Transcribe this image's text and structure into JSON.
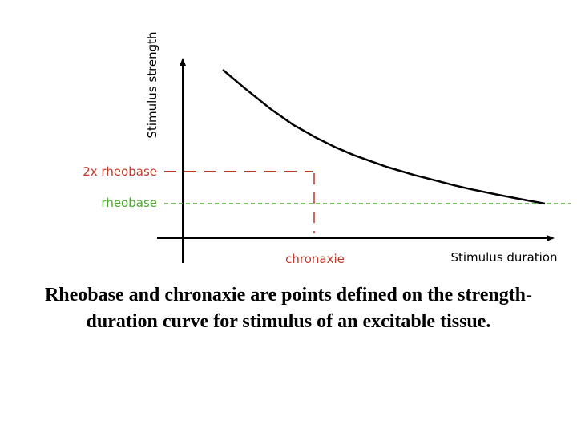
{
  "chart_data": {
    "type": "line",
    "title": "",
    "xlabel": "Stimulus duration",
    "ylabel": "Stimulus strength",
    "xticks": [],
    "yticks": [],
    "grid": false,
    "series": [
      {
        "color": "#000000",
        "x": [
          1.0,
          1.2,
          1.5,
          1.8,
          2.2,
          2.6,
          3.0,
          3.5,
          4.0,
          5.0,
          6.0,
          7.0,
          8.0,
          10.0,
          12.0,
          15.0
        ],
        "y": [
          3.2,
          2.9,
          2.55,
          2.3,
          2.08,
          1.92,
          1.8,
          1.69,
          1.6,
          1.47,
          1.38,
          1.3,
          1.24,
          1.15,
          1.08,
          1.0
        ]
      }
    ],
    "annotations": [
      {
        "label": "2x rheobase",
        "y": 2.0,
        "color": "#c0392b",
        "style": "dashed"
      },
      {
        "label": "rheobase",
        "y": 1.0,
        "color": "#4ea72e",
        "style": "dashed"
      },
      {
        "label": "chronaxie",
        "x": 2.4,
        "color": "#c0392b",
        "style": "dashed"
      }
    ]
  },
  "caption": "Rheobase and chronaxie are points defined on the strength-duration curve for stimulus of an excitable tissue."
}
